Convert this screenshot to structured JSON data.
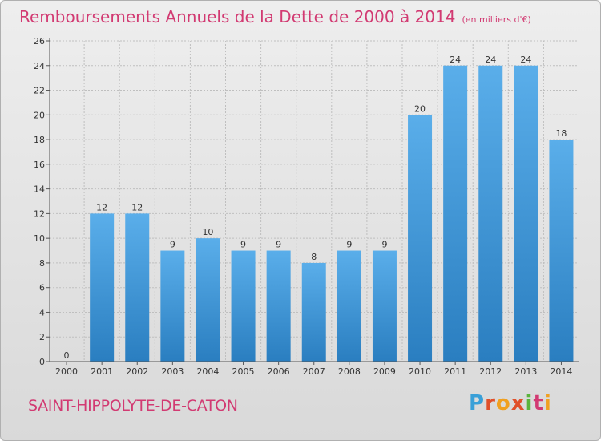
{
  "title": "Remboursements Annuels de la Dette de 2000 à 2014",
  "subtitle": "(en milliers d'€)",
  "commune": "SAINT-HIPPOLYTE-DE-CATON",
  "logo": {
    "text": "Proxiti",
    "letters": [
      "P",
      "r",
      "o",
      "x",
      "i",
      "t",
      "i"
    ]
  },
  "colors": {
    "title": "#d23a72",
    "bar_top": "#5aaeea",
    "bar_bottom": "#2a7ec0",
    "grid": "#bfbfbf"
  },
  "chart_data": {
    "type": "bar",
    "title": "Remboursements Annuels de la Dette de 2000 à 2014",
    "xlabel": "",
    "ylabel": "",
    "ylim": [
      0,
      26
    ],
    "yticks": [
      0,
      2,
      4,
      6,
      8,
      10,
      12,
      14,
      16,
      18,
      20,
      22,
      24,
      26
    ],
    "grid": true,
    "categories": [
      "2000",
      "2001",
      "2002",
      "2003",
      "2004",
      "2005",
      "2006",
      "2007",
      "2008",
      "2009",
      "2010",
      "2011",
      "2012",
      "2013",
      "2014"
    ],
    "values": [
      0,
      12,
      12,
      9,
      10,
      9,
      9,
      8,
      9,
      9,
      20,
      24,
      24,
      24,
      18
    ]
  }
}
